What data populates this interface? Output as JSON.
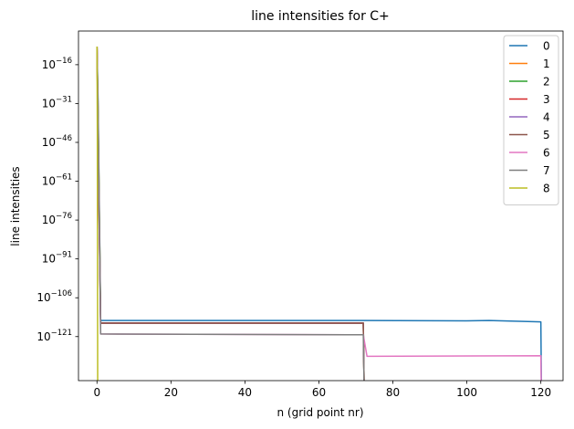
{
  "chart_data": {
    "type": "line",
    "title": "line intensities for C+",
    "xlabel": "n (grid point nr)",
    "ylabel": "line intensities",
    "yscale": "log",
    "xlim": [
      -5,
      126
    ],
    "ylim_exp": [
      -138,
      -3
    ],
    "x_ticks": [
      0,
      20,
      40,
      60,
      80,
      100,
      120
    ],
    "y_ticks": [
      {
        "base": "10",
        "exp": "−16",
        "value_exp": -16
      },
      {
        "base": "10",
        "exp": "−31",
        "value_exp": -31
      },
      {
        "base": "10",
        "exp": "−46",
        "value_exp": -46
      },
      {
        "base": "10",
        "exp": "−61",
        "value_exp": -61
      },
      {
        "base": "10",
        "exp": "−76",
        "value_exp": -76
      },
      {
        "base": "10",
        "exp": "−91",
        "value_exp": -91
      },
      {
        "base": "10",
        "exp": "−106",
        "value_exp": -106
      },
      {
        "base": "10",
        "exp": "−121",
        "value_exp": -121
      }
    ],
    "legend_position": "top-right",
    "grid": false,
    "series": [
      {
        "name": "0",
        "color": "#1f77b4",
        "log10_points": [
          [
            0,
            -9
          ],
          [
            0.3,
            -30
          ],
          [
            1,
            -114.8
          ],
          [
            72,
            -114.8
          ],
          [
            100,
            -114.9
          ],
          [
            106,
            -114.8
          ],
          [
            120,
            -115.3
          ],
          [
            120.2,
            -150
          ]
        ]
      },
      {
        "name": "1",
        "color": "#ff7f0e",
        "log10_points": [
          [
            0,
            -9
          ],
          [
            0.3,
            -33
          ],
          [
            1,
            -115.8
          ],
          [
            72,
            -115.8
          ],
          [
            72.3,
            -150
          ]
        ]
      },
      {
        "name": "2",
        "color": "#2ca02c",
        "log10_points": [
          [
            0,
            -9
          ],
          [
            0.3,
            -36
          ],
          [
            1,
            -115.8
          ],
          [
            72,
            -115.8
          ],
          [
            72.3,
            -150
          ]
        ]
      },
      {
        "name": "3",
        "color": "#d62728",
        "log10_points": [
          [
            0,
            -9
          ],
          [
            0.4,
            -60
          ],
          [
            1,
            -115.8
          ],
          [
            72,
            -115.8
          ],
          [
            72.3,
            -150
          ]
        ]
      },
      {
        "name": "4",
        "color": "#9467bd",
        "log10_points": [
          [
            0,
            -9
          ],
          [
            0.5,
            -62
          ],
          [
            1,
            -115.8
          ],
          [
            72,
            -115.8
          ],
          [
            72.3,
            -150
          ]
        ]
      },
      {
        "name": "5",
        "color": "#8c564b",
        "log10_points": [
          [
            0,
            -9
          ],
          [
            0.5,
            -66
          ],
          [
            1,
            -115.8
          ],
          [
            72,
            -115.8
          ],
          [
            72.3,
            -150
          ]
        ]
      },
      {
        "name": "6",
        "color": "#e377c2",
        "log10_points": [
          [
            0,
            -9
          ],
          [
            0.4,
            -52
          ],
          [
            1,
            -120
          ],
          [
            72,
            -120.3
          ],
          [
            73,
            -128.6
          ],
          [
            120,
            -128.4
          ],
          [
            120.2,
            -150
          ]
        ]
      },
      {
        "name": "7",
        "color": "#7f7f7f",
        "log10_points": [
          [
            0,
            -9
          ],
          [
            0.3,
            -34
          ],
          [
            1,
            -120
          ],
          [
            72,
            -120.3
          ],
          [
            72.3,
            -150
          ]
        ]
      },
      {
        "name": "8",
        "color": "#bcbd22",
        "log10_points": [
          [
            0,
            -9
          ],
          [
            0.1,
            -42
          ],
          [
            0.2,
            -150
          ]
        ]
      }
    ]
  }
}
